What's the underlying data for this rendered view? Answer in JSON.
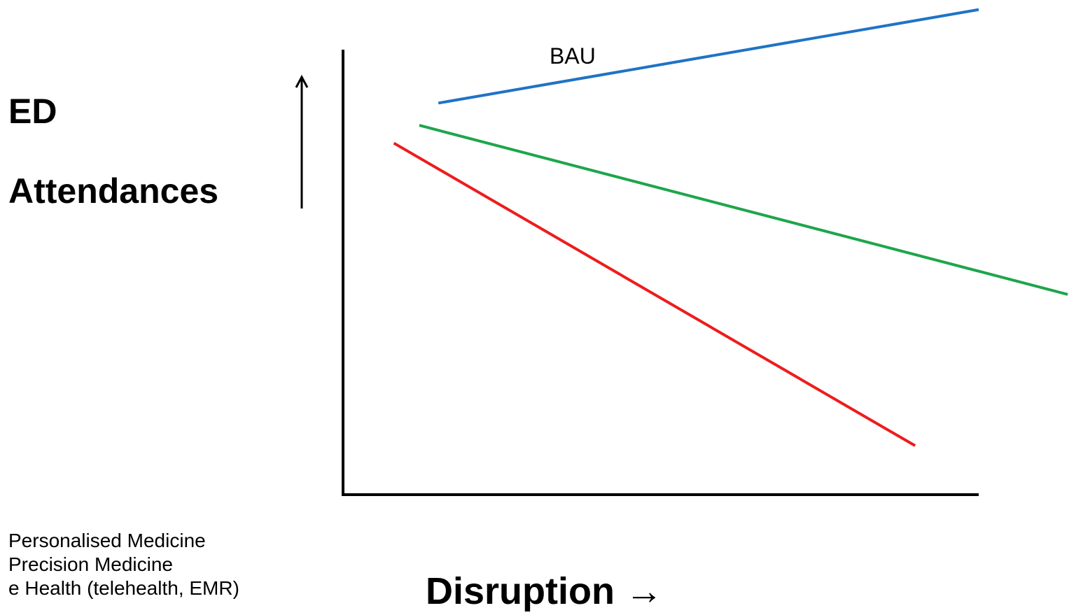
{
  "chart_data": {
    "type": "line",
    "ylabel": [
      "ED",
      "Attendances"
    ],
    "xlabel": "Disruption →",
    "series": [
      {
        "name": "BAU",
        "x": [
          0.15,
          1.0
        ],
        "y": [
          0.88,
          1.09
        ],
        "color": "#1f73c6"
      },
      {
        "x": [
          0.12,
          1.14
        ],
        "y": [
          0.83,
          0.45
        ],
        "color": "#1ea54b"
      },
      {
        "x": [
          0.08,
          0.9
        ],
        "y": [
          0.79,
          0.11
        ],
        "color": "#ee1c1c"
      }
    ],
    "xlim": [
      0,
      1
    ],
    "ylim": [
      0,
      1
    ],
    "grid": false,
    "axis_color": "#000000"
  },
  "notes": [
    "Personalised Medicine",
    "Precision Medicine",
    "e Health (telehealth, EMR)"
  ]
}
